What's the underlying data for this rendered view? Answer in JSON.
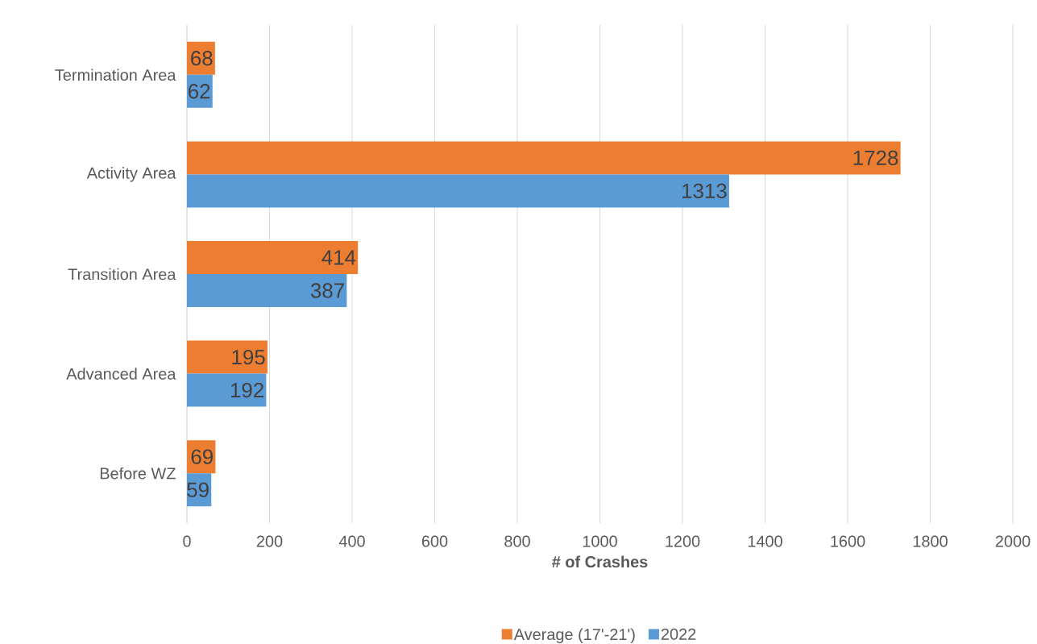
{
  "chart_data": {
    "type": "bar",
    "orientation": "horizontal",
    "categories": [
      "Termination Area",
      "Activity Area",
      "Transition Area",
      "Advanced Area",
      "Before WZ"
    ],
    "series": [
      {
        "name": "Average (17'-21')",
        "color": "#ed7d31",
        "values": [
          68,
          1728,
          414,
          195,
          69
        ]
      },
      {
        "name": "2022",
        "color": "#5b9bd5",
        "values": [
          62,
          1313,
          387,
          192,
          59
        ]
      }
    ],
    "xlabel": "# of Crashes",
    "xlim": [
      0,
      2000
    ],
    "xticks": [
      0,
      200,
      400,
      600,
      800,
      1000,
      1200,
      1400,
      1600,
      1800,
      2000
    ],
    "grid": "x",
    "legend": "bottom",
    "data_labels": true
  }
}
